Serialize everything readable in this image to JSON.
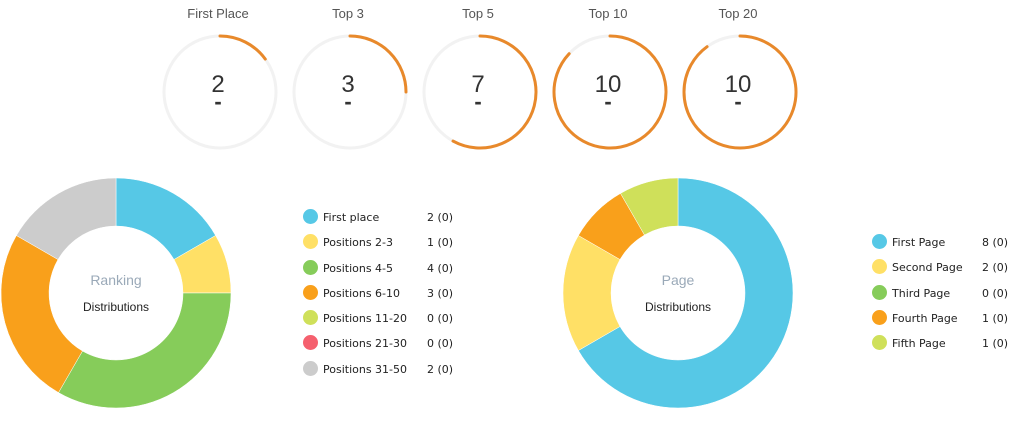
{
  "gauges": [
    {
      "label": "First Place",
      "value": "2",
      "change": "-",
      "fraction": 0.15
    },
    {
      "label": "Top 3",
      "value": "3",
      "change": "-",
      "fraction": 0.25
    },
    {
      "label": "Top 5",
      "value": "7",
      "change": "-",
      "fraction": 0.58
    },
    {
      "label": "Top 10",
      "value": "10",
      "change": "-",
      "fraction": 0.87
    },
    {
      "label": "Top 20",
      "value": "10",
      "change": "-",
      "fraction": 0.9
    }
  ],
  "colors": {
    "gauge_arc": "#e8892b",
    "gauge_track": "#f2f2f2"
  },
  "chart_data": [
    {
      "type": "pie",
      "title": "Ranking",
      "subtitle": "Distributions",
      "slices": [
        {
          "label": "First place",
          "value": 2,
          "display": "2 (0)",
          "color": "#56c8e6"
        },
        {
          "label": "Positions 2-3",
          "value": 1,
          "display": "1 (0)",
          "color": "#ffe066"
        },
        {
          "label": "Positions 4-5",
          "value": 4,
          "display": "4 (0)",
          "color": "#86cc5a"
        },
        {
          "label": "Positions 6-10",
          "value": 3,
          "display": "3 (0)",
          "color": "#f9a01b"
        },
        {
          "label": "Positions 11-20",
          "value": 0,
          "display": "0 (0)",
          "color": "#cfe05a"
        },
        {
          "label": "Positions 21-30",
          "value": 0,
          "display": "0 (0)",
          "color": "#f5606e"
        },
        {
          "label": "Positions 31-50",
          "value": 2,
          "display": "2 (0)",
          "color": "#cccccc"
        }
      ]
    },
    {
      "type": "pie",
      "title": "Page",
      "subtitle": "Distributions",
      "slices": [
        {
          "label": "First Page",
          "value": 8,
          "display": "8 (0)",
          "color": "#56c8e6"
        },
        {
          "label": "Second Page",
          "value": 2,
          "display": "2 (0)",
          "color": "#ffe066"
        },
        {
          "label": "Third Page",
          "value": 0,
          "display": "0 (0)",
          "color": "#86cc5a"
        },
        {
          "label": "Fourth Page",
          "value": 1,
          "display": "1 (0)",
          "color": "#f9a01b"
        },
        {
          "label": "Fifth Page",
          "value": 1,
          "display": "1 (0)",
          "color": "#cfe05a"
        }
      ]
    }
  ]
}
